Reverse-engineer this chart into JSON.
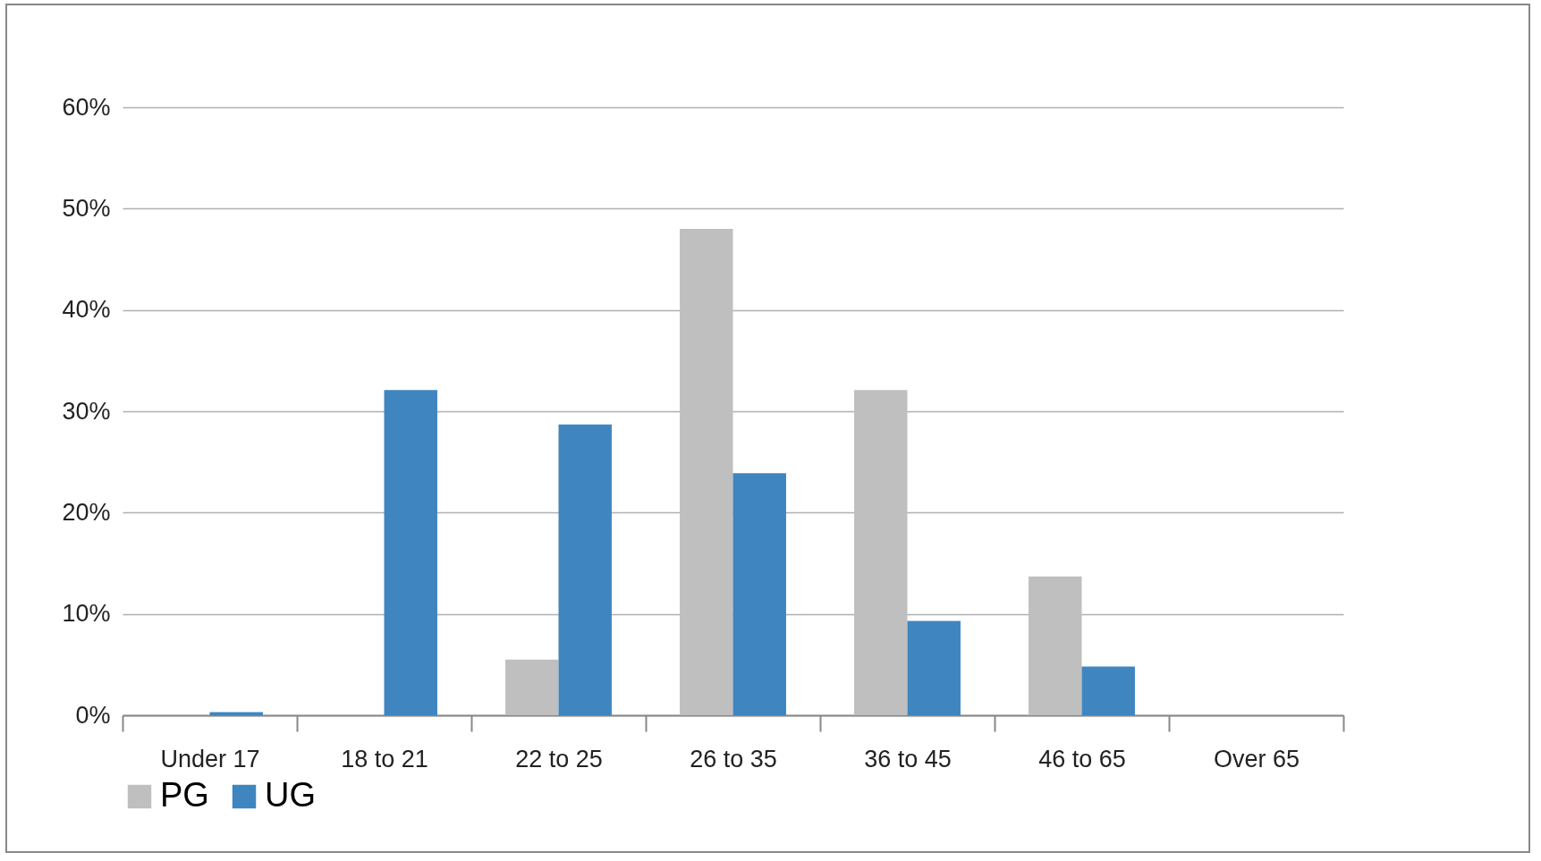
{
  "chart_data": {
    "type": "bar",
    "categories": [
      "Under 17",
      "18 to 21",
      "22 to 25",
      "26 to 35",
      "36 to 45",
      "46 to 65",
      "Over 65"
    ],
    "series": [
      {
        "name": "PG",
        "color": "#bfbfbf",
        "values": [
          0,
          0,
          5.5,
          48,
          32.1,
          13.7,
          0
        ]
      },
      {
        "name": "UG",
        "color": "#3f85c0",
        "values": [
          0.3,
          32.1,
          28.7,
          23.9,
          9.3,
          4.8,
          0
        ]
      }
    ],
    "ylim": [
      0,
      60
    ],
    "yticks": [
      {
        "value": 0,
        "label": "0%"
      },
      {
        "value": 10,
        "label": "10%"
      },
      {
        "value": 20,
        "label": "20%"
      },
      {
        "value": 30,
        "label": "30%"
      },
      {
        "value": 40,
        "label": "40%"
      },
      {
        "value": 50,
        "label": "50%"
      },
      {
        "value": 60,
        "label": "60%"
      }
    ],
    "grid": "y",
    "legend": "bottom"
  }
}
